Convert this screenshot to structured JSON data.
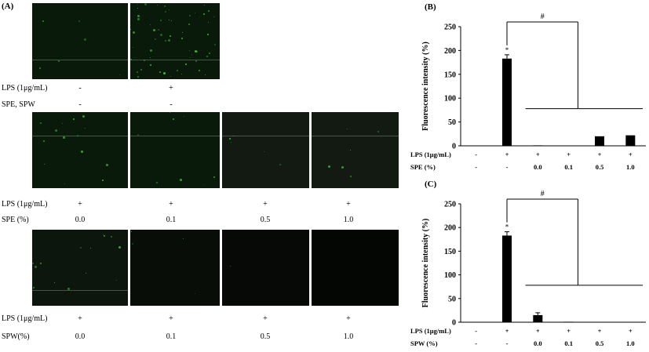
{
  "panel_a": {
    "label": "(A)",
    "row1": {
      "lps_label": "LPS (1μg/mL)",
      "treat_label": "SPE, SPW",
      "lps": [
        "-",
        "+"
      ],
      "treat": [
        "-",
        "-"
      ]
    },
    "row2": {
      "lps_label": "LPS (1μg/mL)",
      "treat_label": "SPE (%)",
      "lps": [
        "+",
        "+",
        "+",
        "+"
      ],
      "treat": [
        "0.0",
        "0.1",
        "0.5",
        "1.0"
      ]
    },
    "row3": {
      "lps_label": "LPS (1μg/mL)",
      "treat_label": "SPW(%)",
      "lps": [
        "+",
        "+",
        "+",
        "+"
      ],
      "treat": [
        "0.0",
        "0.1",
        "0.5",
        "1.0"
      ]
    }
  },
  "chart_data": [
    {
      "type": "bar",
      "panel_label": "(B)",
      "ylabel": "Fluorescence intensity (%)",
      "ylim": [
        0,
        250
      ],
      "yticks": [
        "0",
        "50",
        "100",
        "150",
        "200",
        "250"
      ],
      "values": [
        0,
        183,
        1,
        0,
        20,
        22
      ],
      "errors": [
        0,
        8,
        0,
        0,
        0,
        0
      ],
      "significance": [
        "",
        "*",
        "",
        "",
        "",
        ""
      ],
      "bracket_label": "#",
      "row_labels": [
        "LPS (1μg/mL)",
        "SPE (%)"
      ],
      "row1": [
        "-",
        "+",
        "+",
        "+",
        "+",
        "+"
      ],
      "row2": [
        "-",
        "-",
        "0.0",
        "0.1",
        "0.5",
        "1.0"
      ]
    },
    {
      "type": "bar",
      "panel_label": "(C)",
      "ylabel": "Fluorescence intensity (%)",
      "ylim": [
        0,
        250
      ],
      "yticks": [
        "0",
        "50",
        "100",
        "150",
        "200",
        "250"
      ],
      "values": [
        0,
        183,
        15,
        1,
        0,
        0
      ],
      "errors": [
        0,
        8,
        5,
        0,
        0,
        0
      ],
      "significance": [
        "",
        "*",
        "",
        "",
        "",
        ""
      ],
      "bracket_label": "#",
      "row_labels": [
        "LPS (1μg/mL)",
        "SPW (%)"
      ],
      "row1": [
        "-",
        "+",
        "+",
        "+",
        "+",
        "+"
      ],
      "row2": [
        "-",
        "-",
        "0.0",
        "0.1",
        "0.5",
        "1.0"
      ]
    }
  ],
  "colors": {
    "bar": "#000000",
    "micro_bg": "#0a1a0a",
    "micro_dots": "#3ed13e"
  }
}
